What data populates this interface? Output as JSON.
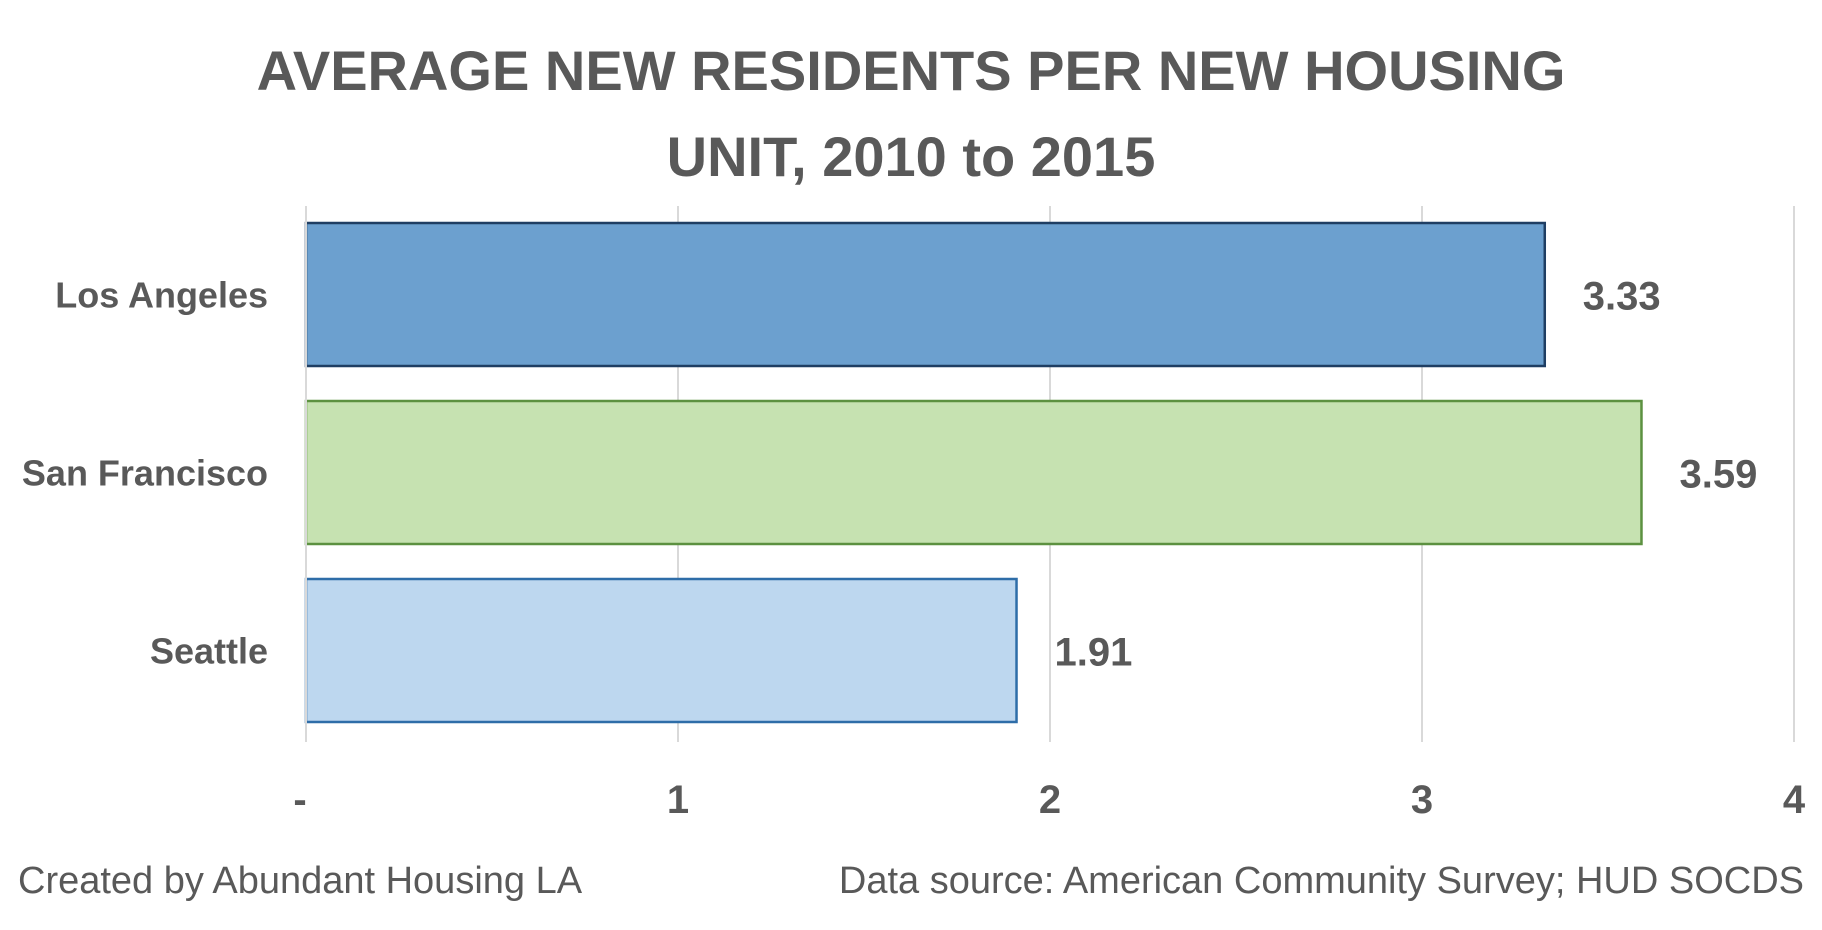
{
  "chart_data": {
    "type": "bar",
    "orientation": "horizontal",
    "title_lines": [
      "AVERAGE NEW RESIDENTS PER NEW HOUSING",
      "UNIT, 2010 to 2015"
    ],
    "title": "AVERAGE NEW RESIDENTS PER NEW HOUSING UNIT, 2010 to 2015",
    "categories": [
      "Los Angeles",
      "San Francisco",
      "Seattle"
    ],
    "values": [
      3.33,
      3.59,
      1.91
    ],
    "data_labels": [
      "3.33",
      "3.59",
      "1.91"
    ],
    "colors": [
      {
        "fill": "#699ECE",
        "stroke": "#1F3E63"
      },
      {
        "fill": "#C5E1AF",
        "stroke": "#5C9140"
      },
      {
        "fill": "#BCD6EF",
        "stroke": "#2E6DA8"
      }
    ],
    "x_ticks": [
      0,
      1,
      2,
      3,
      4
    ],
    "x_tick_labels": [
      "-",
      "1",
      "2",
      "3",
      "4"
    ],
    "xlim": [
      0,
      4
    ],
    "grid": "vertical",
    "legend": "none"
  },
  "footer": {
    "credit": "Created by Abundant Housing LA",
    "source": "Data source: American Community Survey; HUD SOCDS"
  },
  "colors": {
    "text": "#595959",
    "grid": "#D9D9D9"
  }
}
